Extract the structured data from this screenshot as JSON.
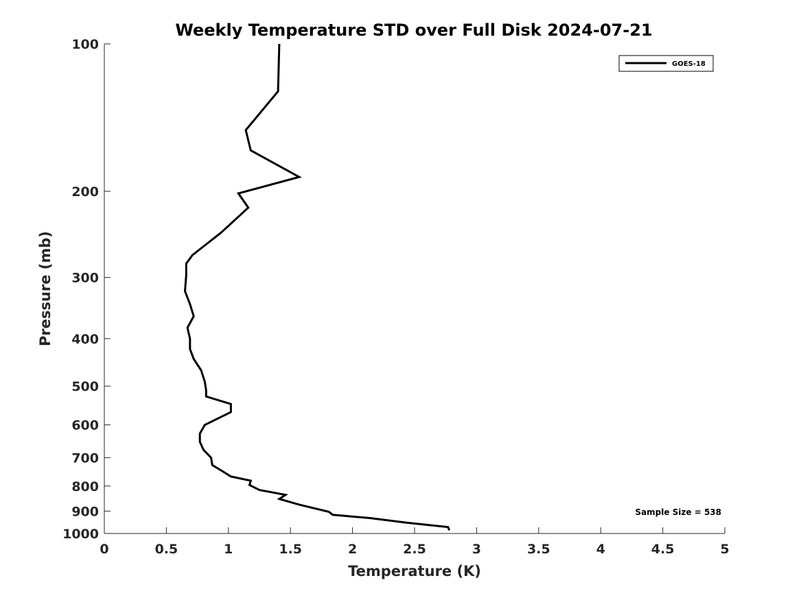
{
  "chart_data": {
    "type": "line",
    "title": "Weekly Temperature STD over Full Disk 2024-07-21",
    "xlabel": "Temperature (K)",
    "ylabel": "Pressure (mb)",
    "xlim": [
      0,
      5
    ],
    "ylim": [
      100,
      1000
    ],
    "y_scale": "log",
    "y_reversed": true,
    "x_ticks": [
      0,
      0.5,
      1,
      1.5,
      2,
      2.5,
      3,
      3.5,
      4,
      4.5,
      5
    ],
    "x_tick_labels": [
      "0",
      "0.5",
      "1",
      "1.5",
      "2",
      "2.5",
      "3",
      "3.5",
      "4",
      "4.5",
      "5"
    ],
    "y_ticks": [
      100,
      200,
      300,
      400,
      500,
      600,
      700,
      800,
      900,
      1000
    ],
    "y_tick_labels": [
      "100",
      "200",
      "300",
      "400",
      "500",
      "600",
      "700",
      "800",
      "900",
      "1000"
    ],
    "grid": false,
    "legend_position": "top-right",
    "line_color": "#000000",
    "series": [
      {
        "name": "GOES-18",
        "points": [
          [
            1.41,
            100
          ],
          [
            1.4,
            125
          ],
          [
            1.14,
            150
          ],
          [
            1.18,
            165
          ],
          [
            1.57,
            187
          ],
          [
            1.08,
            202
          ],
          [
            1.16,
            216
          ],
          [
            0.94,
            243
          ],
          [
            0.71,
            270
          ],
          [
            0.66,
            281
          ],
          [
            0.66,
            297
          ],
          [
            0.65,
            320
          ],
          [
            0.69,
            340
          ],
          [
            0.72,
            360
          ],
          [
            0.67,
            380
          ],
          [
            0.69,
            400
          ],
          [
            0.69,
            420
          ],
          [
            0.72,
            440
          ],
          [
            0.78,
            464
          ],
          [
            0.81,
            490
          ],
          [
            0.82,
            510
          ],
          [
            0.82,
            525
          ],
          [
            1.02,
            544
          ],
          [
            1.02,
            565
          ],
          [
            0.81,
            600
          ],
          [
            0.77,
            625
          ],
          [
            0.77,
            650
          ],
          [
            0.8,
            675
          ],
          [
            0.86,
            700
          ],
          [
            0.87,
            725
          ],
          [
            0.94,
            743
          ],
          [
            1.02,
            765
          ],
          [
            1.18,
            780
          ],
          [
            1.17,
            796
          ],
          [
            1.25,
            815
          ],
          [
            1.46,
            834
          ],
          [
            1.41,
            850
          ],
          [
            1.57,
            873
          ],
          [
            1.81,
            903
          ],
          [
            1.84,
            916
          ],
          [
            2.14,
            930
          ],
          [
            2.43,
            950
          ],
          [
            2.77,
            970
          ],
          [
            2.78,
            985
          ]
        ]
      }
    ],
    "annotation": "Sample Size = 538"
  }
}
